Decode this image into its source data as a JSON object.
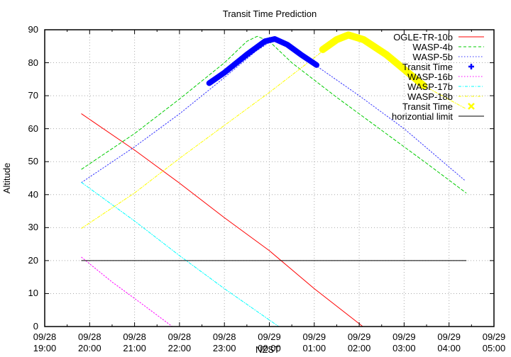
{
  "chart_data": {
    "type": "line",
    "title": "Transit Time Prediction",
    "xlabel": "NZST",
    "ylabel": "Altitude",
    "ylim": [
      0,
      90
    ],
    "yticks": [
      0,
      10,
      20,
      30,
      40,
      50,
      60,
      70,
      80,
      90
    ],
    "xlim_hours_from_0928_1900": [
      0,
      10
    ],
    "xticks": [
      {
        "date": "09/28",
        "time": "19:00"
      },
      {
        "date": "09/28",
        "time": "20:00"
      },
      {
        "date": "09/28",
        "time": "21:00"
      },
      {
        "date": "09/28",
        "time": "22:00"
      },
      {
        "date": "09/28",
        "time": "23:00"
      },
      {
        "date": "09/29",
        "time": "00:00"
      },
      {
        "date": "09/29",
        "time": "01:00"
      },
      {
        "date": "09/29",
        "time": "02:00"
      },
      {
        "date": "09/29",
        "time": "03:00"
      },
      {
        "date": "09/29",
        "time": "04:00"
      },
      {
        "date": "09/29",
        "time": "05:00"
      }
    ],
    "grid": true,
    "legend_position": "top-right",
    "series": [
      {
        "name": "OGLE-TR-10b",
        "color": "#ff0000",
        "style": "solid",
        "width": 1,
        "points": [
          [
            0.82,
            64.5
          ],
          [
            2.0,
            53.5
          ],
          [
            3.0,
            43.5
          ],
          [
            4.0,
            33.0
          ],
          [
            5.0,
            23.0
          ],
          [
            6.0,
            11.5
          ],
          [
            7.08,
            0
          ]
        ]
      },
      {
        "name": "WASP-4b",
        "color": "#00cc00",
        "style": "dash",
        "width": 1,
        "points": [
          [
            0.82,
            47.7
          ],
          [
            2.0,
            58.5
          ],
          [
            3.0,
            69.0
          ],
          [
            4.0,
            80.0
          ],
          [
            4.5,
            86.5
          ],
          [
            4.73,
            88.0
          ],
          [
            5.0,
            86.5
          ],
          [
            5.5,
            80.0
          ],
          [
            6.5,
            69.5
          ],
          [
            7.5,
            59.5
          ],
          [
            8.5,
            49.5
          ],
          [
            9.38,
            40.5
          ]
        ]
      },
      {
        "name": "WASP-5b",
        "color": "#3333ff",
        "style": "dot",
        "width": 1,
        "points": [
          [
            0.82,
            43.7
          ],
          [
            2.0,
            54.5
          ],
          [
            3.0,
            64.5
          ],
          [
            4.0,
            75.5
          ],
          [
            4.7,
            83.5
          ],
          [
            5.12,
            87.2
          ],
          [
            5.5,
            84.5
          ],
          [
            6.0,
            79.5
          ],
          [
            7.0,
            70.0
          ],
          [
            8.0,
            60.0
          ],
          [
            9.36,
            44.2
          ]
        ]
      },
      {
        "name": "Transit Time",
        "color": "#0000ff",
        "style": "marker-plus-thick",
        "width": 8,
        "points": [
          [
            3.66,
            73.8
          ],
          [
            4.0,
            77.0
          ],
          [
            4.5,
            82.5
          ],
          [
            4.9,
            86.5
          ],
          [
            5.12,
            87.2
          ],
          [
            5.4,
            85.5
          ],
          [
            5.7,
            82.5
          ],
          [
            6.05,
            79.3
          ]
        ]
      },
      {
        "name": "WASP-16b",
        "color": "#ff00ff",
        "style": "dot",
        "width": 1,
        "points": [
          [
            0.82,
            21.0
          ],
          [
            1.5,
            13.5
          ],
          [
            2.2,
            6.5
          ],
          [
            2.84,
            0
          ]
        ]
      },
      {
        "name": "WASP-17b",
        "color": "#00ffff",
        "style": "dashdot",
        "width": 1,
        "points": [
          [
            0.82,
            43.7
          ],
          [
            2.0,
            32.0
          ],
          [
            3.0,
            21.5
          ],
          [
            4.0,
            11.5
          ],
          [
            5.21,
            0
          ]
        ]
      },
      {
        "name": "WASP-18b",
        "color": "#ffff00",
        "style": "dashdot",
        "width": 1,
        "points": [
          [
            0.82,
            29.8
          ],
          [
            2.0,
            40.5
          ],
          [
            3.0,
            51.0
          ],
          [
            4.0,
            61.0
          ],
          [
            5.0,
            71.0
          ],
          [
            6.0,
            81.5
          ],
          [
            6.5,
            87.0
          ],
          [
            6.76,
            88.4
          ],
          [
            7.1,
            87.0
          ],
          [
            7.6,
            82.5
          ],
          [
            8.44,
            73.0
          ],
          [
            9.38,
            66.0
          ]
        ]
      },
      {
        "name": "Transit Time",
        "color": "#ffff00",
        "style": "marker-cross-thick",
        "width": 10,
        "points": [
          [
            6.19,
            84.0
          ],
          [
            6.5,
            87.0
          ],
          [
            6.76,
            88.4
          ],
          [
            7.1,
            87.0
          ],
          [
            7.6,
            82.5
          ],
          [
            8.0,
            78.0
          ],
          [
            8.44,
            73.0
          ]
        ]
      },
      {
        "name": "horizontial limit",
        "color": "#000000",
        "style": "solid",
        "width": 1,
        "points": [
          [
            0.82,
            20
          ],
          [
            9.38,
            20
          ]
        ]
      }
    ]
  },
  "legend": {
    "items": [
      {
        "label": "OGLE-TR-10b"
      },
      {
        "label": "WASP-4b"
      },
      {
        "label": "WASP-5b"
      },
      {
        "label": "Transit Time"
      },
      {
        "label": "WASP-16b"
      },
      {
        "label": "WASP-17b"
      },
      {
        "label": "WASP-18b"
      },
      {
        "label": "Transit Time"
      },
      {
        "label": "horizontial limit"
      }
    ]
  }
}
